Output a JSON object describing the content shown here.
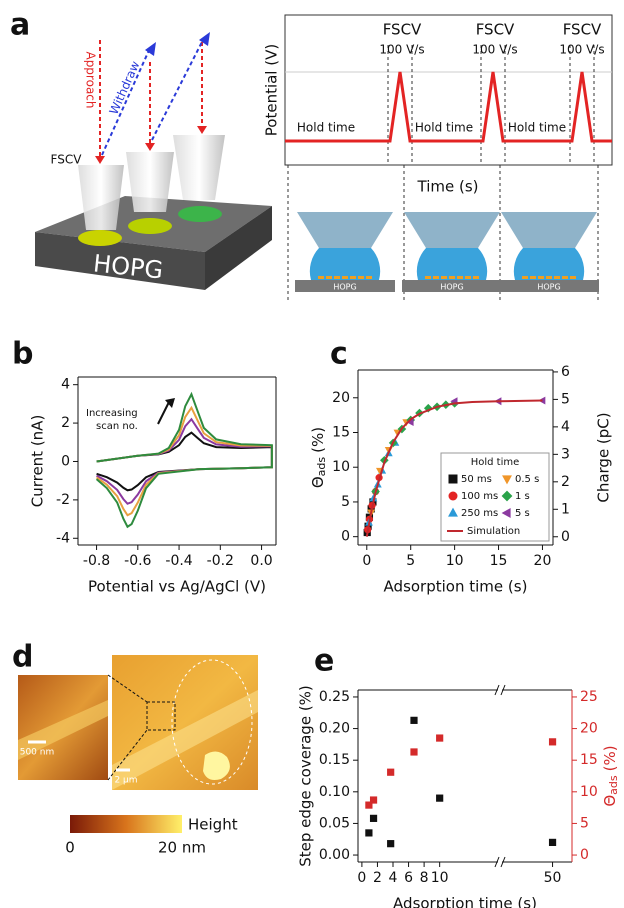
{
  "panel_labels": [
    "a",
    "b",
    "c",
    "d",
    "e"
  ],
  "panel_a": {
    "approach": "Approach",
    "withdraw": "Withdraw",
    "fscv": "FSCV",
    "substrate": "HOPG",
    "y_label": "Potential (V)",
    "x_label": "Time (s)",
    "pulses": [
      {
        "name": "FSCV",
        "rate": "100 V/s"
      },
      {
        "name": "FSCV",
        "rate": "100 V/s"
      },
      {
        "name": "FSCV",
        "rate": "100 V/s"
      }
    ],
    "hold_labels": [
      "Hold time",
      "Hold time",
      "Hold time"
    ],
    "cell_substrates": [
      "HOPG",
      "HOPG",
      "HOPG"
    ]
  },
  "panel_d": {
    "inset_scale": "500 nm",
    "main_scale": "2 μm",
    "colorbar_label": "Height",
    "colorbar_min": 0,
    "colorbar_max": "20 nm"
  },
  "chart_data": [
    {
      "type": "line",
      "x_label": "Potential vs Ag/AgCl (V)",
      "y_label": "Current (nA)",
      "annotation": [
        "Increasing",
        "scan no."
      ],
      "x": [
        -0.8,
        -0.6,
        -0.5,
        -0.45,
        -0.4,
        -0.37,
        -0.34,
        -0.31,
        -0.28,
        -0.22,
        -0.1,
        0.05,
        0.05,
        -0.1,
        -0.3,
        -0.5,
        -0.56,
        -0.6,
        -0.63,
        -0.65,
        -0.67,
        -0.7,
        -0.75,
        -0.8
      ],
      "series": [
        {
          "color": "#111111",
          "values": [
            0,
            0.3,
            0.37,
            0.5,
            0.85,
            1.28,
            1.5,
            1.22,
            0.95,
            0.75,
            0.7,
            0.75,
            -0.3,
            -0.35,
            -0.4,
            -0.55,
            -0.82,
            -1.23,
            -1.46,
            -1.5,
            -1.37,
            -1.1,
            -0.82,
            -0.64
          ]
        },
        {
          "color": "#8b3aa0",
          "values": [
            0,
            0.3,
            0.38,
            0.57,
            1.13,
            1.84,
            2.2,
            1.71,
            1.23,
            0.89,
            0.77,
            0.79,
            -0.3,
            -0.35,
            -0.4,
            -0.58,
            -1.03,
            -1.72,
            -2.12,
            -2.2,
            -1.96,
            -1.48,
            -1.03,
            -0.74
          ]
        },
        {
          "color": "#e8a040",
          "values": [
            0,
            0.3,
            0.4,
            0.63,
            1.37,
            2.32,
            2.8,
            2.13,
            1.47,
            1.01,
            0.83,
            0.82,
            -0.3,
            -0.35,
            -0.4,
            -0.61,
            -1.21,
            -2.14,
            -2.69,
            -2.8,
            -2.47,
            -1.81,
            -1.21,
            -0.83
          ]
        },
        {
          "color": "#2e8b3e",
          "values": [
            0,
            0.3,
            0.41,
            0.7,
            1.65,
            2.88,
            3.5,
            2.62,
            1.75,
            1.15,
            0.9,
            0.85,
            -0.3,
            -0.35,
            -0.4,
            -0.64,
            -1.39,
            -2.56,
            -3.26,
            -3.4,
            -2.98,
            -2.14,
            -1.39,
            -0.92
          ]
        }
      ],
      "xlim": [
        -0.89,
        0.07
      ],
      "xticks": [
        -0.8,
        -0.6,
        -0.4,
        -0.2,
        {
          "value": 0,
          "label": "0.0"
        }
      ],
      "ylim": [
        -4.35,
        4.4
      ],
      "yticks": [
        -4,
        -2,
        0,
        2,
        4
      ]
    },
    {
      "type": "scatter",
      "x_label": "Adsorption time (s)",
      "y_label": {
        "symbol": "Θ",
        "subscript": "ads",
        "unit": "(%)"
      },
      "y2_label": "Charge (pC)",
      "legend_title": "Hold time",
      "legend": "lower right",
      "series": [
        {
          "name": "50 ms",
          "color": "#111111",
          "marker": "square",
          "x": [
            0.05,
            0.15,
            0.3,
            0.5,
            0.7
          ],
          "values": [
            0.6,
            1.5,
            2.8,
            4.0,
            5.0
          ]
        },
        {
          "name": "100 ms",
          "color": "#e32424",
          "marker": "circle",
          "x": [
            0.1,
            0.3,
            0.6,
            1.0,
            1.4
          ],
          "values": [
            1.0,
            2.5,
            4.5,
            6.5,
            8.5
          ]
        },
        {
          "name": "250 ms",
          "color": "#2a9ad8",
          "marker": "triangle-up",
          "x": [
            0.25,
            0.75,
            1.25,
            1.75,
            2.5,
            3.25
          ],
          "values": [
            2.0,
            5.5,
            7.5,
            9.5,
            12.0,
            13.5
          ]
        },
        {
          "name": "0.5 s",
          "color": "#f0962a",
          "marker": "triangle-down",
          "x": [
            0.5,
            1.5,
            2.5,
            3.5,
            4.5
          ],
          "values": [
            3.5,
            9.5,
            12.5,
            15.0,
            16.5
          ]
        },
        {
          "name": "1 s",
          "color": "#2aa34a",
          "marker": "diamond",
          "x": [
            1,
            2,
            3,
            4,
            5,
            6,
            7,
            8,
            9,
            10
          ],
          "values": [
            6.5,
            11,
            13.5,
            15.5,
            16.8,
            17.8,
            18.5,
            18.7,
            19,
            19.2
          ]
        },
        {
          "name": "5 s",
          "color": "#8b3aa0",
          "marker": "triangle-left",
          "x": [
            5,
            10,
            15,
            20
          ],
          "values": [
            16.5,
            19.5,
            19.5,
            19.6
          ]
        },
        {
          "name": "Simulation",
          "color": "#c0282e",
          "type": "line",
          "x": [
            0,
            0.5,
            1,
            2,
            3,
            4,
            5,
            6,
            8,
            10,
            12,
            15,
            20
          ],
          "values": [
            0,
            3.5,
            6.4,
            10.7,
            13.6,
            15.6,
            16.9,
            17.7,
            18.7,
            19.2,
            19.4,
            19.5,
            19.6
          ]
        }
      ],
      "xlim": [
        -1,
        21.2
      ],
      "xticks": [
        0,
        5,
        10,
        15,
        20
      ],
      "ylim": [
        -1.2,
        24
      ],
      "yticks": [
        0,
        5,
        10,
        15,
        20
      ],
      "y2lim": [
        -0.3,
        6.07
      ],
      "y2ticks": [
        0,
        1,
        2,
        3,
        4,
        5,
        6
      ]
    },
    {
      "type": "scatter",
      "x_label": "Adsorption time (s)",
      "y_label": "Step edge coverage (%)",
      "y2_label": {
        "symbol": "Θ",
        "subscript": "ads",
        "unit": "(%)"
      },
      "y2_color": "#d42a2a",
      "x": [
        0.9,
        1.5,
        3.7,
        6.7,
        10,
        50
      ],
      "series": [
        {
          "color": "#111111",
          "marker": "square",
          "values": [
            0.035,
            0.058,
            0.018,
            0.213,
            0.09,
            0.02
          ]
        },
        {
          "color": "#d42a2a",
          "marker": "square",
          "axis": "y2",
          "values": [
            7.9,
            8.7,
            13.1,
            16.3,
            18.5,
            17.9
          ]
        }
      ],
      "xlim": [
        -0.5,
        52.5
      ],
      "x_break": [
        17.5,
        43.5
      ],
      "xticks": [
        0,
        2,
        4,
        6,
        8,
        10,
        50
      ],
      "ylim": [
        -0.011,
        0.261
      ],
      "yticks": [
        {
          "value": 0,
          "label": "0.00"
        },
        0.05,
        {
          "value": 0.1,
          "label": "0.10"
        },
        0.15,
        {
          "value": 0.2,
          "label": "0.20"
        },
        0.25
      ],
      "y2lim": [
        -1.1,
        26.1
      ],
      "y2ticks": [
        0,
        5,
        10,
        15,
        20,
        25
      ]
    }
  ]
}
